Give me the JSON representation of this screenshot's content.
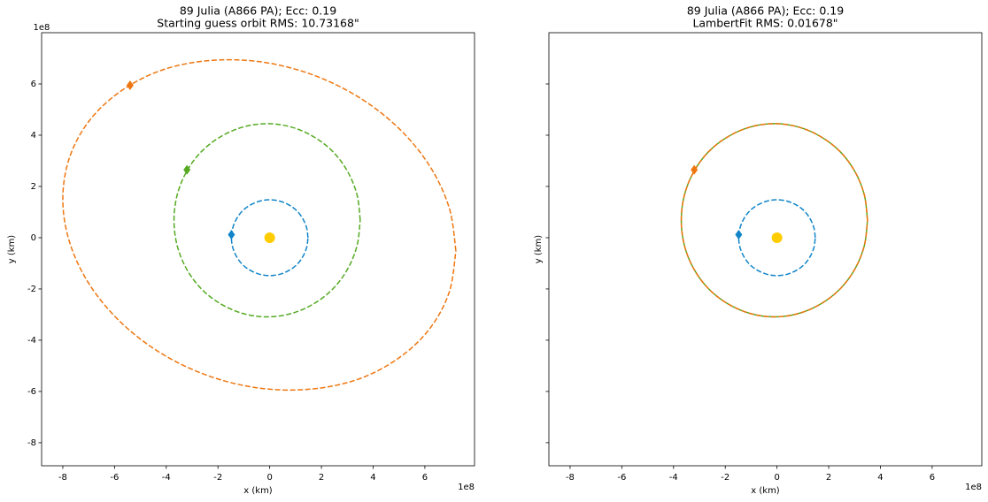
{
  "chart_data": [
    {
      "type": "line",
      "title": "89 Julia (A866 PA); Ecc: 0.19",
      "subtitle": "Starting guess orbit RMS: 10.73168\"",
      "xlabel": "x (km)",
      "ylabel": "y (km)",
      "x_offset_text": "1e8",
      "y_offset_text": "1e8",
      "xlim": [
        -8.82,
        7.92
      ],
      "ylim": [
        -8.9,
        8.0
      ],
      "xticks": [
        -8,
        -6,
        -4,
        -2,
        0,
        2,
        4,
        6
      ],
      "yticks": [
        -8,
        -6,
        -4,
        -2,
        0,
        2,
        4,
        6
      ],
      "ytick_labels": true,
      "series": [
        {
          "color": "#1185c8",
          "style": "dashed",
          "x": [
            1.48,
            1.43,
            1.28,
            1.05,
            0.74,
            0.38,
            0,
            -0.38,
            -0.74,
            -1.05,
            -1.28,
            -1.43,
            -1.48,
            -1.43,
            -1.28,
            -1.05,
            -0.74,
            -0.38,
            0,
            0.38,
            0.74,
            1.05,
            1.28,
            1.43,
            1.48
          ],
          "y": [
            0,
            0.38,
            0.74,
            1.05,
            1.28,
            1.43,
            1.48,
            1.43,
            1.28,
            1.05,
            0.74,
            0.38,
            0,
            -0.38,
            -0.74,
            -1.05,
            -1.28,
            -1.43,
            -1.48,
            -1.43,
            -1.28,
            -1.05,
            -0.74,
            -0.38,
            0
          ]
        },
        {
          "color": "#55aa22",
          "style": "dashed",
          "x": [
            3.5,
            3.38,
            3.02,
            2.45,
            1.7,
            0.83,
            -0.1,
            -1.03,
            -1.9,
            -2.65,
            -3.22,
            -3.58,
            -3.7,
            -3.58,
            -3.22,
            -2.65,
            -1.9,
            -1.03,
            -0.1,
            0.83,
            1.7,
            2.45,
            3.02,
            3.38,
            3.5
          ],
          "y": [
            0.68,
            1.66,
            2.57,
            3.35,
            3.94,
            4.32,
            4.45,
            4.32,
            3.94,
            3.35,
            2.57,
            1.66,
            0.68,
            -0.3,
            -1.21,
            -1.99,
            -2.58,
            -2.96,
            -3.09,
            -2.96,
            -2.58,
            -1.99,
            -1.21,
            -0.3,
            0.68
          ]
        },
        {
          "color": "#ee7711",
          "style": "dashed",
          "x": [
            7.2,
            6.94,
            6.18,
            4.97,
            3.4,
            1.57,
            -0.4,
            -2.37,
            -4.2,
            -5.77,
            -6.98,
            -7.74,
            -8.0,
            -7.74,
            -6.98,
            -5.77,
            -4.2,
            -2.37,
            -0.4,
            1.57,
            3.4,
            4.97,
            6.18,
            6.94,
            7.2
          ],
          "y": [
            -0.51,
            1.17,
            2.81,
            4.29,
            5.51,
            6.39,
            6.87,
            6.91,
            6.53,
            5.71,
            4.56,
            3.13,
            1.51,
            -0.17,
            -1.81,
            -3.29,
            -4.51,
            -5.39,
            -5.87,
            -5.91,
            -5.53,
            -4.71,
            -3.56,
            -2.13,
            -0.51
          ]
        }
      ],
      "markers": [
        {
          "color": "#ffcc00",
          "shape": "circle",
          "x": 0,
          "y": 0
        },
        {
          "color": "#1185c8",
          "shape": "diamond",
          "x": -1.48,
          "y": 0.12
        },
        {
          "color": "#55aa22",
          "shape": "diamond",
          "x": -3.2,
          "y": 2.65
        },
        {
          "color": "#ee7711",
          "shape": "diamond",
          "x": -5.4,
          "y": 5.95
        }
      ]
    },
    {
      "type": "line",
      "title": "89 Julia (A866 PA); Ecc: 0.19",
      "subtitle": "LambertFit RMS: 0.01678\"",
      "xlabel": "x (km)",
      "ylabel": "y (km)",
      "x_offset_text": "1e8",
      "xlim": [
        -8.82,
        7.92
      ],
      "ylim": [
        -8.9,
        8.0
      ],
      "xticks": [
        -8,
        -6,
        -4,
        -2,
        0,
        2,
        4,
        6
      ],
      "yticks": [
        -8,
        -6,
        -4,
        -2,
        0,
        2,
        4,
        6
      ],
      "ytick_labels": false,
      "series": [
        {
          "color": "#1185c8",
          "style": "dashed",
          "x": [
            1.48,
            1.43,
            1.28,
            1.05,
            0.74,
            0.38,
            0,
            -0.38,
            -0.74,
            -1.05,
            -1.28,
            -1.43,
            -1.48,
            -1.43,
            -1.28,
            -1.05,
            -0.74,
            -0.38,
            0,
            0.38,
            0.74,
            1.05,
            1.28,
            1.43,
            1.48
          ],
          "y": [
            0,
            0.38,
            0.74,
            1.05,
            1.28,
            1.43,
            1.48,
            1.43,
            1.28,
            1.05,
            0.74,
            0.38,
            0,
            -0.38,
            -0.74,
            -1.05,
            -1.28,
            -1.43,
            -1.48,
            -1.43,
            -1.28,
            -1.05,
            -0.74,
            -0.38,
            0
          ]
        },
        {
          "color": "#55aa22",
          "style": "solid",
          "x": [
            3.5,
            3.38,
            3.02,
            2.45,
            1.7,
            0.83,
            -0.1,
            -1.03,
            -1.9,
            -2.65,
            -3.22,
            -3.58,
            -3.7,
            -3.58,
            -3.22,
            -2.65,
            -1.9,
            -1.03,
            -0.1,
            0.83,
            1.7,
            2.45,
            3.02,
            3.38,
            3.5
          ],
          "y": [
            0.68,
            1.66,
            2.57,
            3.35,
            3.94,
            4.32,
            4.45,
            4.32,
            3.94,
            3.35,
            2.57,
            1.66,
            0.68,
            -0.3,
            -1.21,
            -1.99,
            -2.58,
            -2.96,
            -3.09,
            -2.96,
            -2.58,
            -1.99,
            -1.21,
            -0.3,
            0.68
          ]
        },
        {
          "color": "#ee7711",
          "style": "dashed",
          "x": [
            3.5,
            3.38,
            3.02,
            2.45,
            1.7,
            0.83,
            -0.1,
            -1.03,
            -1.9,
            -2.65,
            -3.22,
            -3.58,
            -3.7,
            -3.58,
            -3.22,
            -2.65,
            -1.9,
            -1.03,
            -0.1,
            0.83,
            1.7,
            2.45,
            3.02,
            3.38,
            3.5
          ],
          "y": [
            0.68,
            1.66,
            2.57,
            3.35,
            3.94,
            4.32,
            4.45,
            4.32,
            3.94,
            3.35,
            2.57,
            1.66,
            0.68,
            -0.3,
            -1.21,
            -1.99,
            -2.58,
            -2.96,
            -3.09,
            -2.96,
            -2.58,
            -1.99,
            -1.21,
            -0.3,
            0.68
          ]
        }
      ],
      "markers": [
        {
          "color": "#ffcc00",
          "shape": "circle",
          "x": 0,
          "y": 0
        },
        {
          "color": "#1185c8",
          "shape": "diamond",
          "x": -1.48,
          "y": 0.12
        },
        {
          "color": "#ee7711",
          "shape": "diamond",
          "x": -3.2,
          "y": 2.65
        }
      ]
    }
  ]
}
